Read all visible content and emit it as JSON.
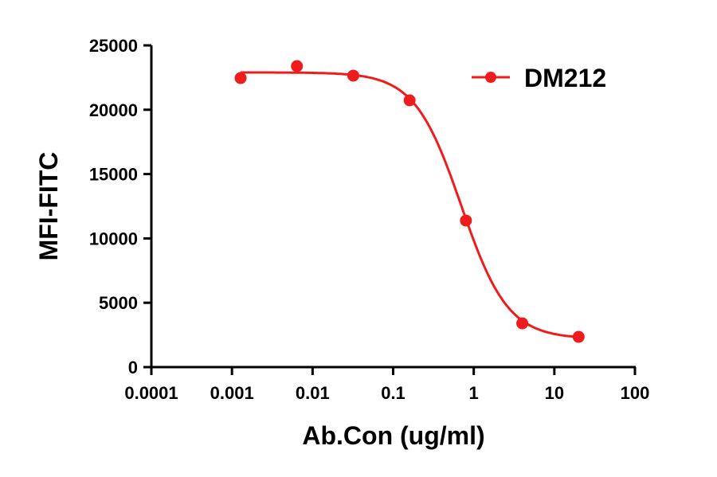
{
  "chart_data": {
    "type": "scatter",
    "title": "",
    "xlabel": "Ab.Con (ug/ml)",
    "ylabel": "MFI-FITC",
    "xscale": "log",
    "xlim": [
      0.0001,
      100
    ],
    "ylim": [
      0,
      25000
    ],
    "xticks": [
      "0.0001",
      "0.001",
      "0.01",
      "0.1",
      "1",
      "10",
      "100"
    ],
    "yticks": [
      "0",
      "5000",
      "10000",
      "15000",
      "20000",
      "25000"
    ],
    "legend_position": "top-right",
    "color": "#ee1c1c",
    "series": [
      {
        "name": "DM212",
        "x": [
          0.00128,
          0.0064,
          0.032,
          0.16,
          0.8,
          4,
          20
        ],
        "y": [
          22460,
          23390,
          22650,
          20730,
          11390,
          3400,
          2350
        ],
        "fit": {
          "model": "4PL",
          "top": 22900,
          "bottom": 2200,
          "ec50": 0.7,
          "hill": 1.5
        }
      }
    ]
  }
}
